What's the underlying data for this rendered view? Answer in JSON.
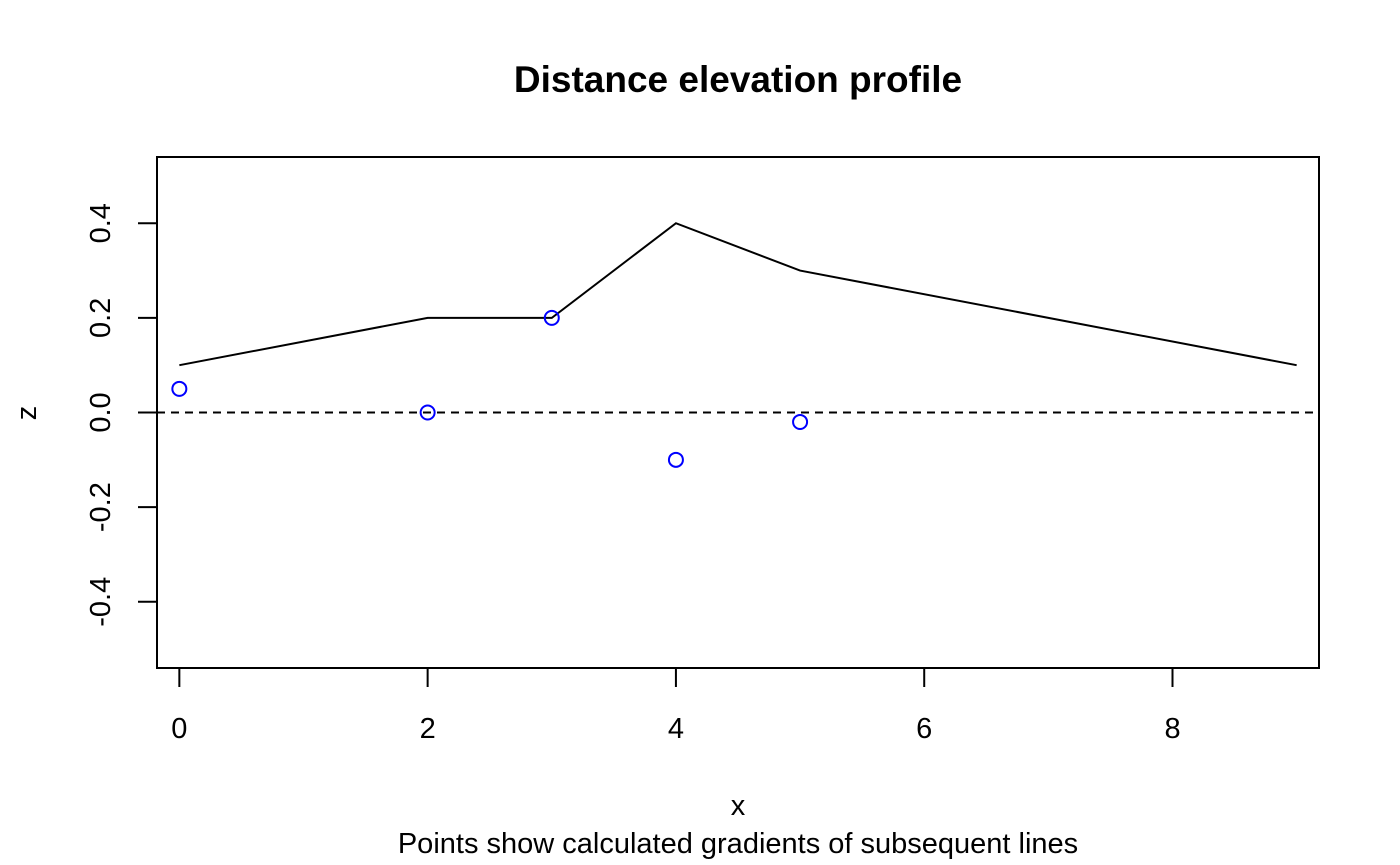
{
  "chart_data": {
    "type": "line",
    "title": "Distance elevation profile",
    "subtitle": "Points show calculated gradients of subsequent lines",
    "xlabel": "x",
    "ylabel": "z",
    "xlim": [
      -0.18,
      9.18
    ],
    "ylim": [
      -0.54,
      0.54
    ],
    "x_ticks": [
      0,
      2,
      4,
      6,
      8
    ],
    "y_ticks": [
      -0.4,
      -0.2,
      0.0,
      0.2,
      0.4
    ],
    "x_tick_labels": [
      "0",
      "2",
      "4",
      "6",
      "8"
    ],
    "y_tick_labels": [
      "-0.4",
      "-0.2",
      "0.0",
      "0.2",
      "0.4"
    ],
    "grid": false,
    "reference_line": {
      "y": 0,
      "style": "dashed",
      "color": "#000000"
    },
    "series": [
      {
        "kind": "line",
        "color": "#000000",
        "x": [
          0,
          2,
          3,
          4,
          5,
          9
        ],
        "y": [
          0.1,
          0.2,
          0.2,
          0.4,
          0.3,
          0.1
        ]
      },
      {
        "kind": "points",
        "marker": "open-circle",
        "color": "#0000ff",
        "x": [
          0,
          2,
          3,
          4,
          5
        ],
        "y": [
          0.05,
          0.0,
          0.2,
          -0.1,
          -0.02
        ]
      }
    ]
  }
}
